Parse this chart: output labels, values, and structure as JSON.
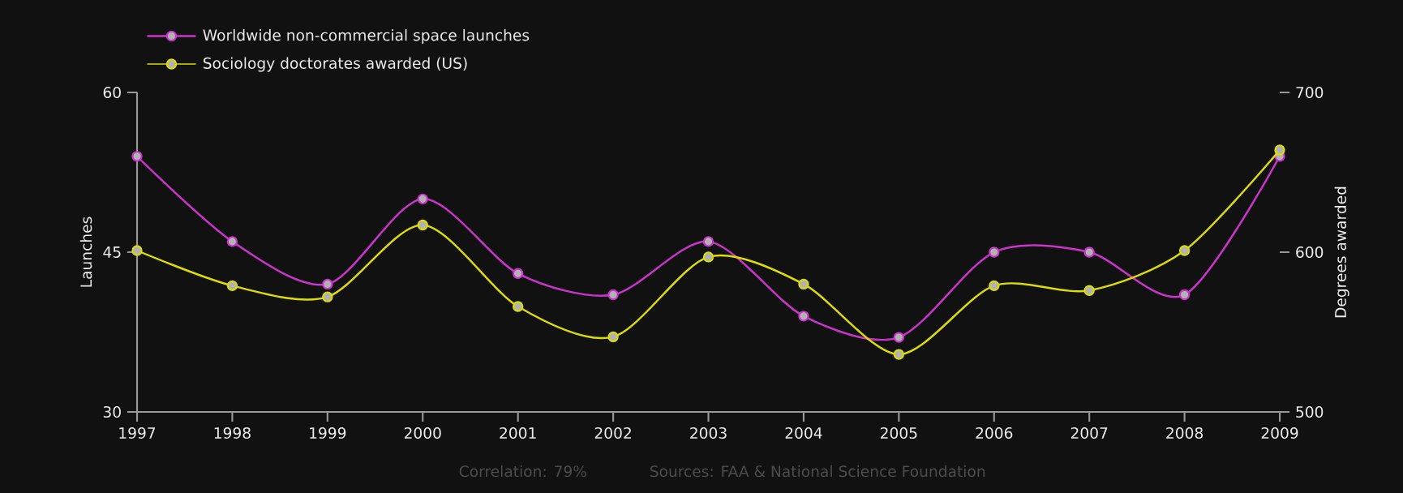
{
  "chart_data": {
    "type": "line",
    "x": [
      1997,
      1998,
      1999,
      2000,
      2001,
      2002,
      2003,
      2004,
      2005,
      2006,
      2007,
      2008,
      2009
    ],
    "ylabel": "Launches",
    "y2label": "Degrees awarded",
    "series": [
      {
        "name": "Worldwide non-commercial space launches",
        "color": "#cc33cc",
        "values": [
          54,
          46,
          42,
          50,
          43,
          41,
          46,
          39,
          37,
          45,
          45,
          41,
          54
        ]
      },
      {
        "name": "Sociology doctorates awarded (US)",
        "color": "#dddd00",
        "axis": "y2",
        "values": [
          601,
          579,
          572,
          617,
          566,
          547,
          597,
          580,
          536,
          579,
          576,
          601,
          664
        ]
      }
    ],
    "xlim": [
      1997,
      2009
    ],
    "xticks": [
      1997,
      1998,
      1999,
      2000,
      2001,
      2002,
      2003,
      2004,
      2005,
      2006,
      2007,
      2008,
      2009
    ],
    "ylim": [
      30,
      60
    ],
    "yticks": [
      30,
      45,
      60
    ],
    "y2lim": [
      500,
      700
    ],
    "y2ticks": [
      500,
      600,
      700
    ],
    "marker": "circle",
    "legend": "top left",
    "grid": false,
    "annotations": [
      "Correlation: 79%",
      "Sources: FAA & National Science Foundation"
    ]
  }
}
